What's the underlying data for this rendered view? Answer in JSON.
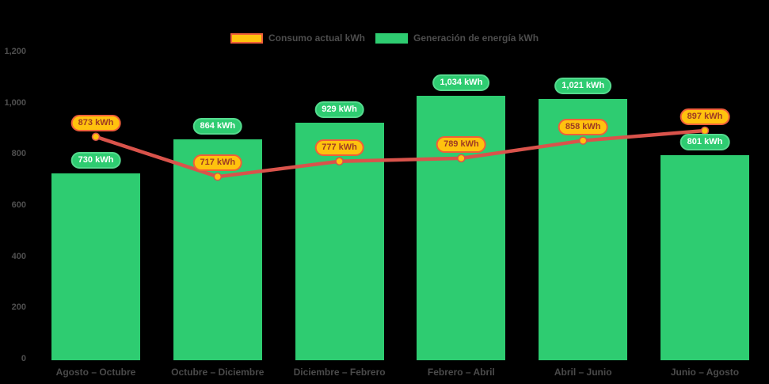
{
  "page": {
    "background": "#000000"
  },
  "legend": {
    "items": [
      {
        "label": "Consumo actual kWh",
        "swatch_fill": "#FFC20E",
        "swatch_border": "#EF5F39"
      },
      {
        "label": "Generación de energía kWh",
        "swatch_fill": "#2ECC71",
        "swatch_border": "#2ECC71"
      }
    ]
  },
  "chart_data": {
    "type": "bar",
    "title": "",
    "categories": [
      "Agosto – Octubre",
      "Octubre – Diciembre",
      "Diciembre – Febrero",
      "Febrero – Abril",
      "Abril – Junio",
      "Junio – Agosto"
    ],
    "series": [
      {
        "name": "Generación de energía kWh",
        "type": "bar",
        "color": "#2ECC71",
        "values": [
          730,
          864,
          929,
          1034,
          1021,
          801
        ],
        "value_labels": [
          "730 kWh",
          "864 kWh",
          "929 kWh",
          "1,034 kWh",
          "1,021 kWh",
          "801 kWh"
        ]
      },
      {
        "name": "Consumo actual kWh",
        "type": "line",
        "color": "#D9534B",
        "marker_fill": "#FFC20E",
        "marker_stroke": "#D9534B",
        "values": [
          873,
          717,
          777,
          789,
          858,
          897
        ],
        "value_labels": [
          "873 kWh",
          "717 kWh",
          "777 kWh",
          "789 kWh",
          "858 kWh",
          "897 kWh"
        ]
      }
    ],
    "xlabel": "",
    "ylabel": "",
    "ylim": [
      0,
      1200
    ],
    "yticks": [
      0,
      200,
      400,
      600,
      800,
      1000,
      1200
    ],
    "ytick_labels": [
      "0",
      "200",
      "400",
      "600",
      "800",
      "1,000",
      "1,200"
    ],
    "grid": false,
    "legend_position": "top-center",
    "axis_text_color": "#4D4D4D"
  }
}
